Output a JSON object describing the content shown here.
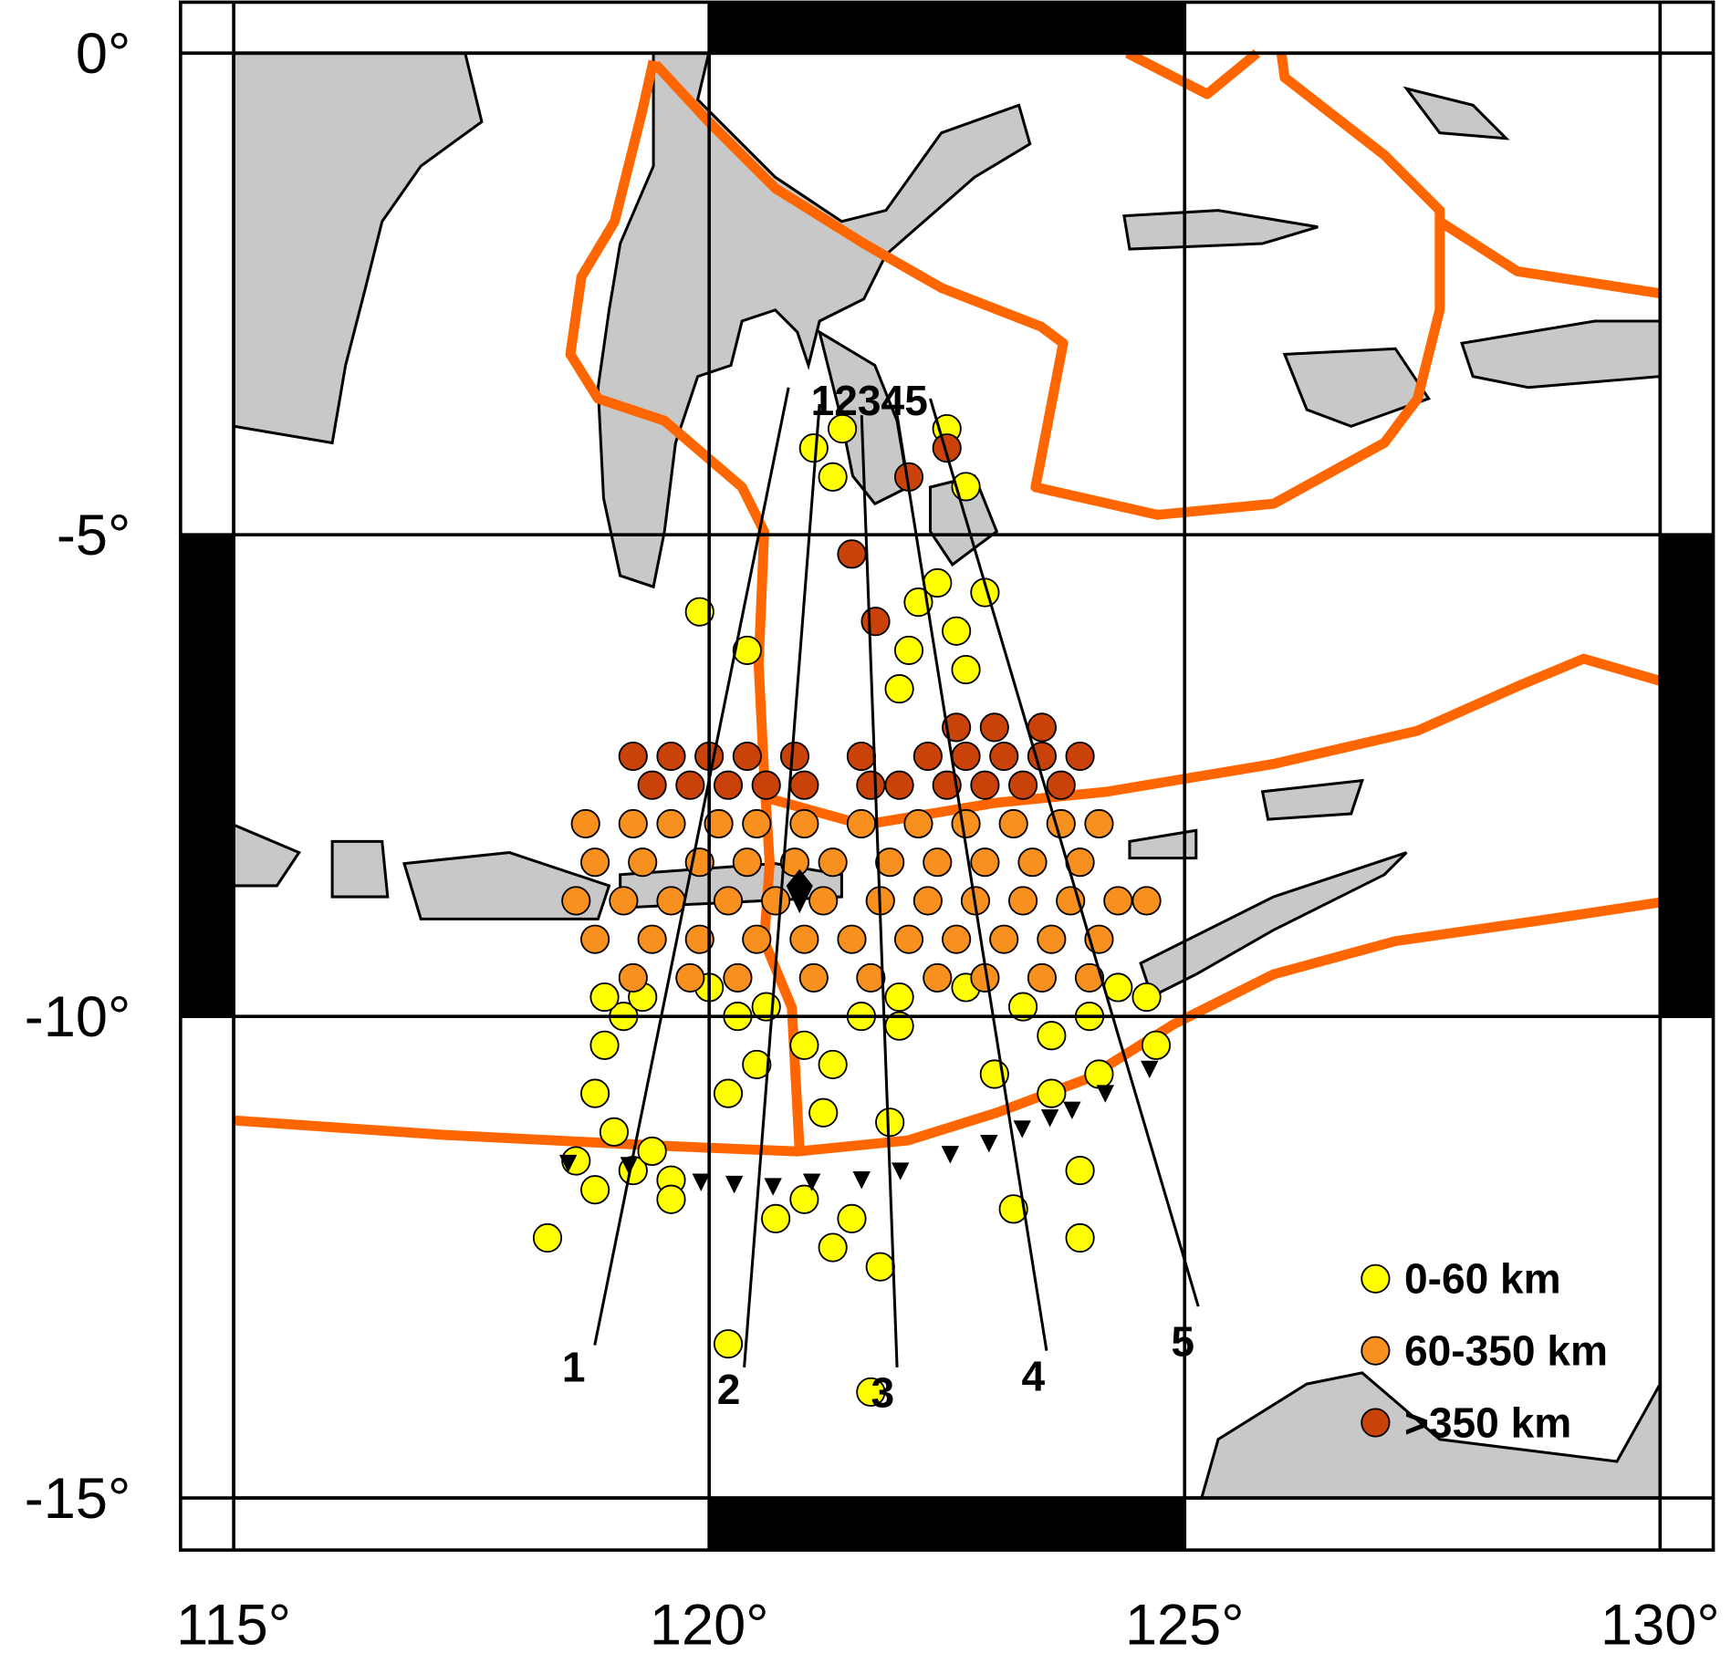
{
  "chart_data": {
    "type": "map",
    "xlim": [
      115,
      130
    ],
    "ylim": [
      -15,
      0
    ],
    "xticks": [
      {
        "value": 115,
        "label": "115°"
      },
      {
        "value": 120,
        "label": "120°"
      },
      {
        "value": 125,
        "label": "125°"
      },
      {
        "value": 130,
        "label": "130°"
      }
    ],
    "yticks": [
      {
        "value": 0,
        "label": "0°"
      },
      {
        "value": -5,
        "label": "-5°"
      },
      {
        "value": -10,
        "label": "-10°"
      },
      {
        "value": -15,
        "label": "-15°"
      }
    ],
    "profile_labels": [
      "1",
      "2",
      "3",
      "4",
      "5"
    ],
    "profile_top_label": "12345",
    "series": [
      {
        "name": "0-60 km",
        "color": "#ffff00",
        "points": [
          [
            118.3,
            -12.3
          ],
          [
            118.6,
            -11.5
          ],
          [
            118.8,
            -11.8
          ],
          [
            119.0,
            -11.2
          ],
          [
            119.2,
            -11.6
          ],
          [
            119.4,
            -11.4
          ],
          [
            119.6,
            -11.7
          ],
          [
            118.8,
            -10.8
          ],
          [
            118.9,
            -10.3
          ],
          [
            119.1,
            -10.0
          ],
          [
            119.3,
            -9.8
          ],
          [
            118.9,
            -9.8
          ],
          [
            119.6,
            -11.9
          ],
          [
            120.0,
            -9.7
          ],
          [
            120.3,
            -10.0
          ],
          [
            120.5,
            -10.5
          ],
          [
            120.2,
            -10.8
          ],
          [
            120.6,
            -9.9
          ],
          [
            120.7,
            -12.1
          ],
          [
            120.2,
            -13.4
          ],
          [
            121.0,
            -11.9
          ],
          [
            121.3,
            -12.4
          ],
          [
            121.5,
            -12.1
          ],
          [
            121.8,
            -12.6
          ],
          [
            121.7,
            -13.9
          ],
          [
            121.0,
            -10.3
          ],
          [
            121.6,
            -10.0
          ],
          [
            121.3,
            -10.5
          ],
          [
            122.0,
            -10.1
          ],
          [
            122.0,
            -9.8
          ],
          [
            121.9,
            -11.1
          ],
          [
            121.2,
            -11.0
          ],
          [
            122.7,
            -9.7
          ],
          [
            123.0,
            -10.6
          ],
          [
            123.3,
            -9.9
          ],
          [
            123.6,
            -10.2
          ],
          [
            124.0,
            -10.0
          ],
          [
            124.3,
            -9.7
          ],
          [
            124.6,
            -9.8
          ],
          [
            124.7,
            -10.3
          ],
          [
            124.1,
            -10.6
          ],
          [
            123.6,
            -10.8
          ],
          [
            123.2,
            -12.0
          ],
          [
            123.9,
            -11.6
          ],
          [
            123.9,
            -12.3
          ],
          [
            119.9,
            -5.8
          ],
          [
            120.4,
            -6.2
          ],
          [
            122.0,
            -6.6
          ],
          [
            122.1,
            -6.2
          ],
          [
            122.2,
            -5.7
          ],
          [
            122.6,
            -6.0
          ],
          [
            122.9,
            -5.6
          ],
          [
            122.7,
            -6.4
          ],
          [
            122.4,
            -5.5
          ],
          [
            121.1,
            -4.1
          ],
          [
            121.4,
            -3.9
          ],
          [
            122.7,
            -4.5
          ],
          [
            122.5,
            -3.9
          ],
          [
            121.3,
            -4.4
          ]
        ]
      },
      {
        "name": "60-350 km",
        "color": "#f7901e",
        "points": [
          [
            118.7,
            -8.0
          ],
          [
            119.2,
            -8.0
          ],
          [
            119.6,
            -8.0
          ],
          [
            120.1,
            -8.0
          ],
          [
            120.5,
            -8.0
          ],
          [
            121.0,
            -8.0
          ],
          [
            121.6,
            -8.0
          ],
          [
            122.2,
            -8.0
          ],
          [
            122.7,
            -8.0
          ],
          [
            123.2,
            -8.0
          ],
          [
            123.7,
            -8.0
          ],
          [
            124.1,
            -8.0
          ],
          [
            118.8,
            -8.4
          ],
          [
            119.3,
            -8.4
          ],
          [
            119.9,
            -8.4
          ],
          [
            120.4,
            -8.4
          ],
          [
            120.9,
            -8.4
          ],
          [
            121.3,
            -8.4
          ],
          [
            121.9,
            -8.4
          ],
          [
            122.4,
            -8.4
          ],
          [
            122.9,
            -8.4
          ],
          [
            123.4,
            -8.4
          ],
          [
            123.9,
            -8.4
          ],
          [
            118.6,
            -8.8
          ],
          [
            119.1,
            -8.8
          ],
          [
            119.6,
            -8.8
          ],
          [
            120.2,
            -8.8
          ],
          [
            120.7,
            -8.8
          ],
          [
            121.2,
            -8.8
          ],
          [
            121.8,
            -8.8
          ],
          [
            122.3,
            -8.8
          ],
          [
            122.8,
            -8.8
          ],
          [
            123.3,
            -8.8
          ],
          [
            123.8,
            -8.8
          ],
          [
            124.3,
            -8.8
          ],
          [
            124.6,
            -8.8
          ],
          [
            118.8,
            -9.2
          ],
          [
            119.4,
            -9.2
          ],
          [
            119.9,
            -9.2
          ],
          [
            120.5,
            -9.2
          ],
          [
            121.0,
            -9.2
          ],
          [
            121.5,
            -9.2
          ],
          [
            122.1,
            -9.2
          ],
          [
            122.6,
            -9.2
          ],
          [
            123.1,
            -9.2
          ],
          [
            123.6,
            -9.2
          ],
          [
            124.1,
            -9.2
          ],
          [
            119.2,
            -9.6
          ],
          [
            119.8,
            -9.6
          ],
          [
            120.3,
            -9.6
          ],
          [
            121.1,
            -9.6
          ],
          [
            121.7,
            -9.6
          ],
          [
            122.4,
            -9.6
          ],
          [
            122.9,
            -9.6
          ],
          [
            123.5,
            -9.6
          ],
          [
            124.0,
            -9.6
          ]
        ]
      },
      {
        "name": ">350 km",
        "color": "#c8420a",
        "points": [
          [
            119.2,
            -7.3
          ],
          [
            119.6,
            -7.3
          ],
          [
            120.0,
            -7.3
          ],
          [
            120.4,
            -7.3
          ],
          [
            120.9,
            -7.3
          ],
          [
            121.6,
            -7.3
          ],
          [
            122.3,
            -7.3
          ],
          [
            122.7,
            -7.3
          ],
          [
            123.1,
            -7.3
          ],
          [
            123.5,
            -7.3
          ],
          [
            123.9,
            -7.3
          ],
          [
            119.4,
            -7.6
          ],
          [
            119.8,
            -7.6
          ],
          [
            120.2,
            -7.6
          ],
          [
            120.6,
            -7.6
          ],
          [
            121.0,
            -7.6
          ],
          [
            121.7,
            -7.6
          ],
          [
            122.0,
            -7.6
          ],
          [
            122.5,
            -7.6
          ],
          [
            122.9,
            -7.6
          ],
          [
            123.3,
            -7.6
          ],
          [
            123.7,
            -7.6
          ],
          [
            122.6,
            -7.0
          ],
          [
            123.0,
            -7.0
          ],
          [
            123.5,
            -7.0
          ],
          [
            121.5,
            -5.2
          ],
          [
            121.75,
            -5.9
          ],
          [
            122.1,
            -4.4
          ],
          [
            122.5,
            -4.1
          ]
        ]
      }
    ]
  }
}
